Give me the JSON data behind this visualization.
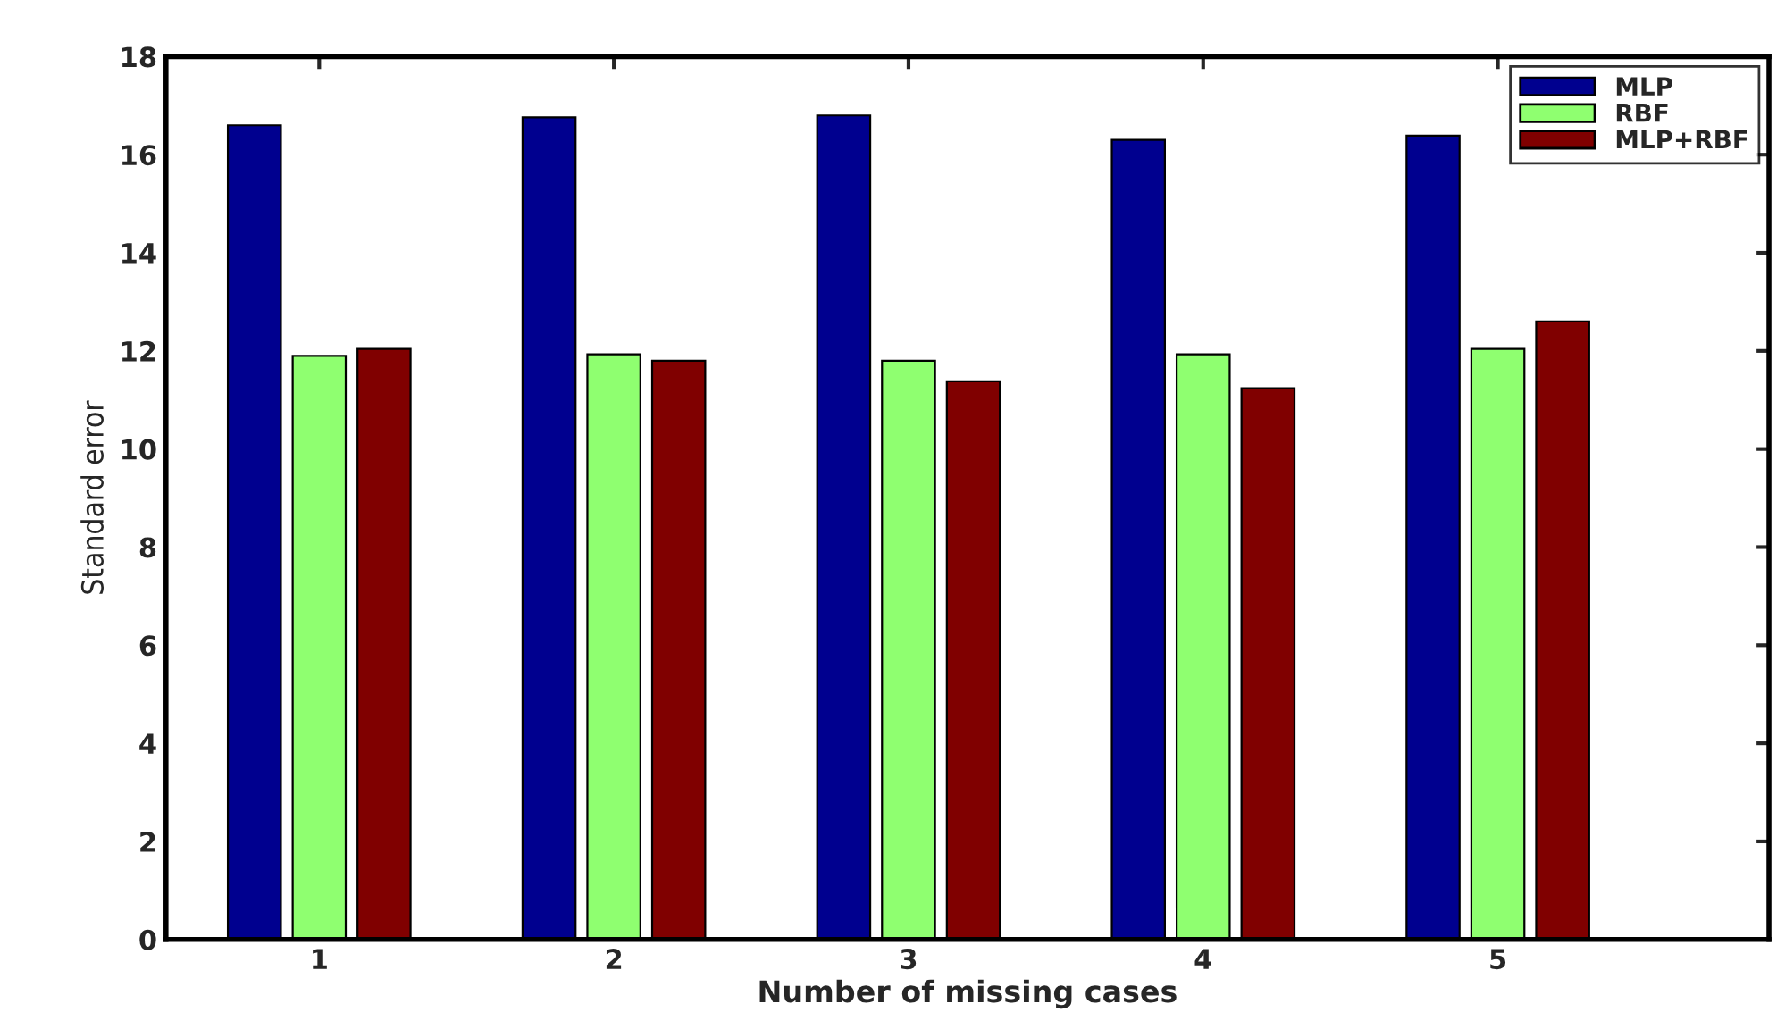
{
  "chart_data": {
    "type": "bar",
    "xlabel": "Number of missing cases",
    "ylabel": "Standard error",
    "categories": [
      "1",
      "2",
      "3",
      "4",
      "5"
    ],
    "series": [
      {
        "name": "MLP",
        "color": "#00008f",
        "values": [
          16.6,
          16.76,
          16.8,
          16.3,
          16.39
        ]
      },
      {
        "name": "RBF",
        "color": "#8fff70",
        "values": [
          11.9,
          11.93,
          11.8,
          11.93,
          12.04
        ]
      },
      {
        "name": "MLP+RBF",
        "color": "#800000",
        "values": [
          12.04,
          11.8,
          11.38,
          11.24,
          12.6
        ]
      }
    ],
    "ylim": [
      0,
      18
    ],
    "yticks": [
      0,
      2,
      4,
      6,
      8,
      10,
      12,
      14,
      16,
      18
    ],
    "grid": false,
    "legend": "top right"
  }
}
